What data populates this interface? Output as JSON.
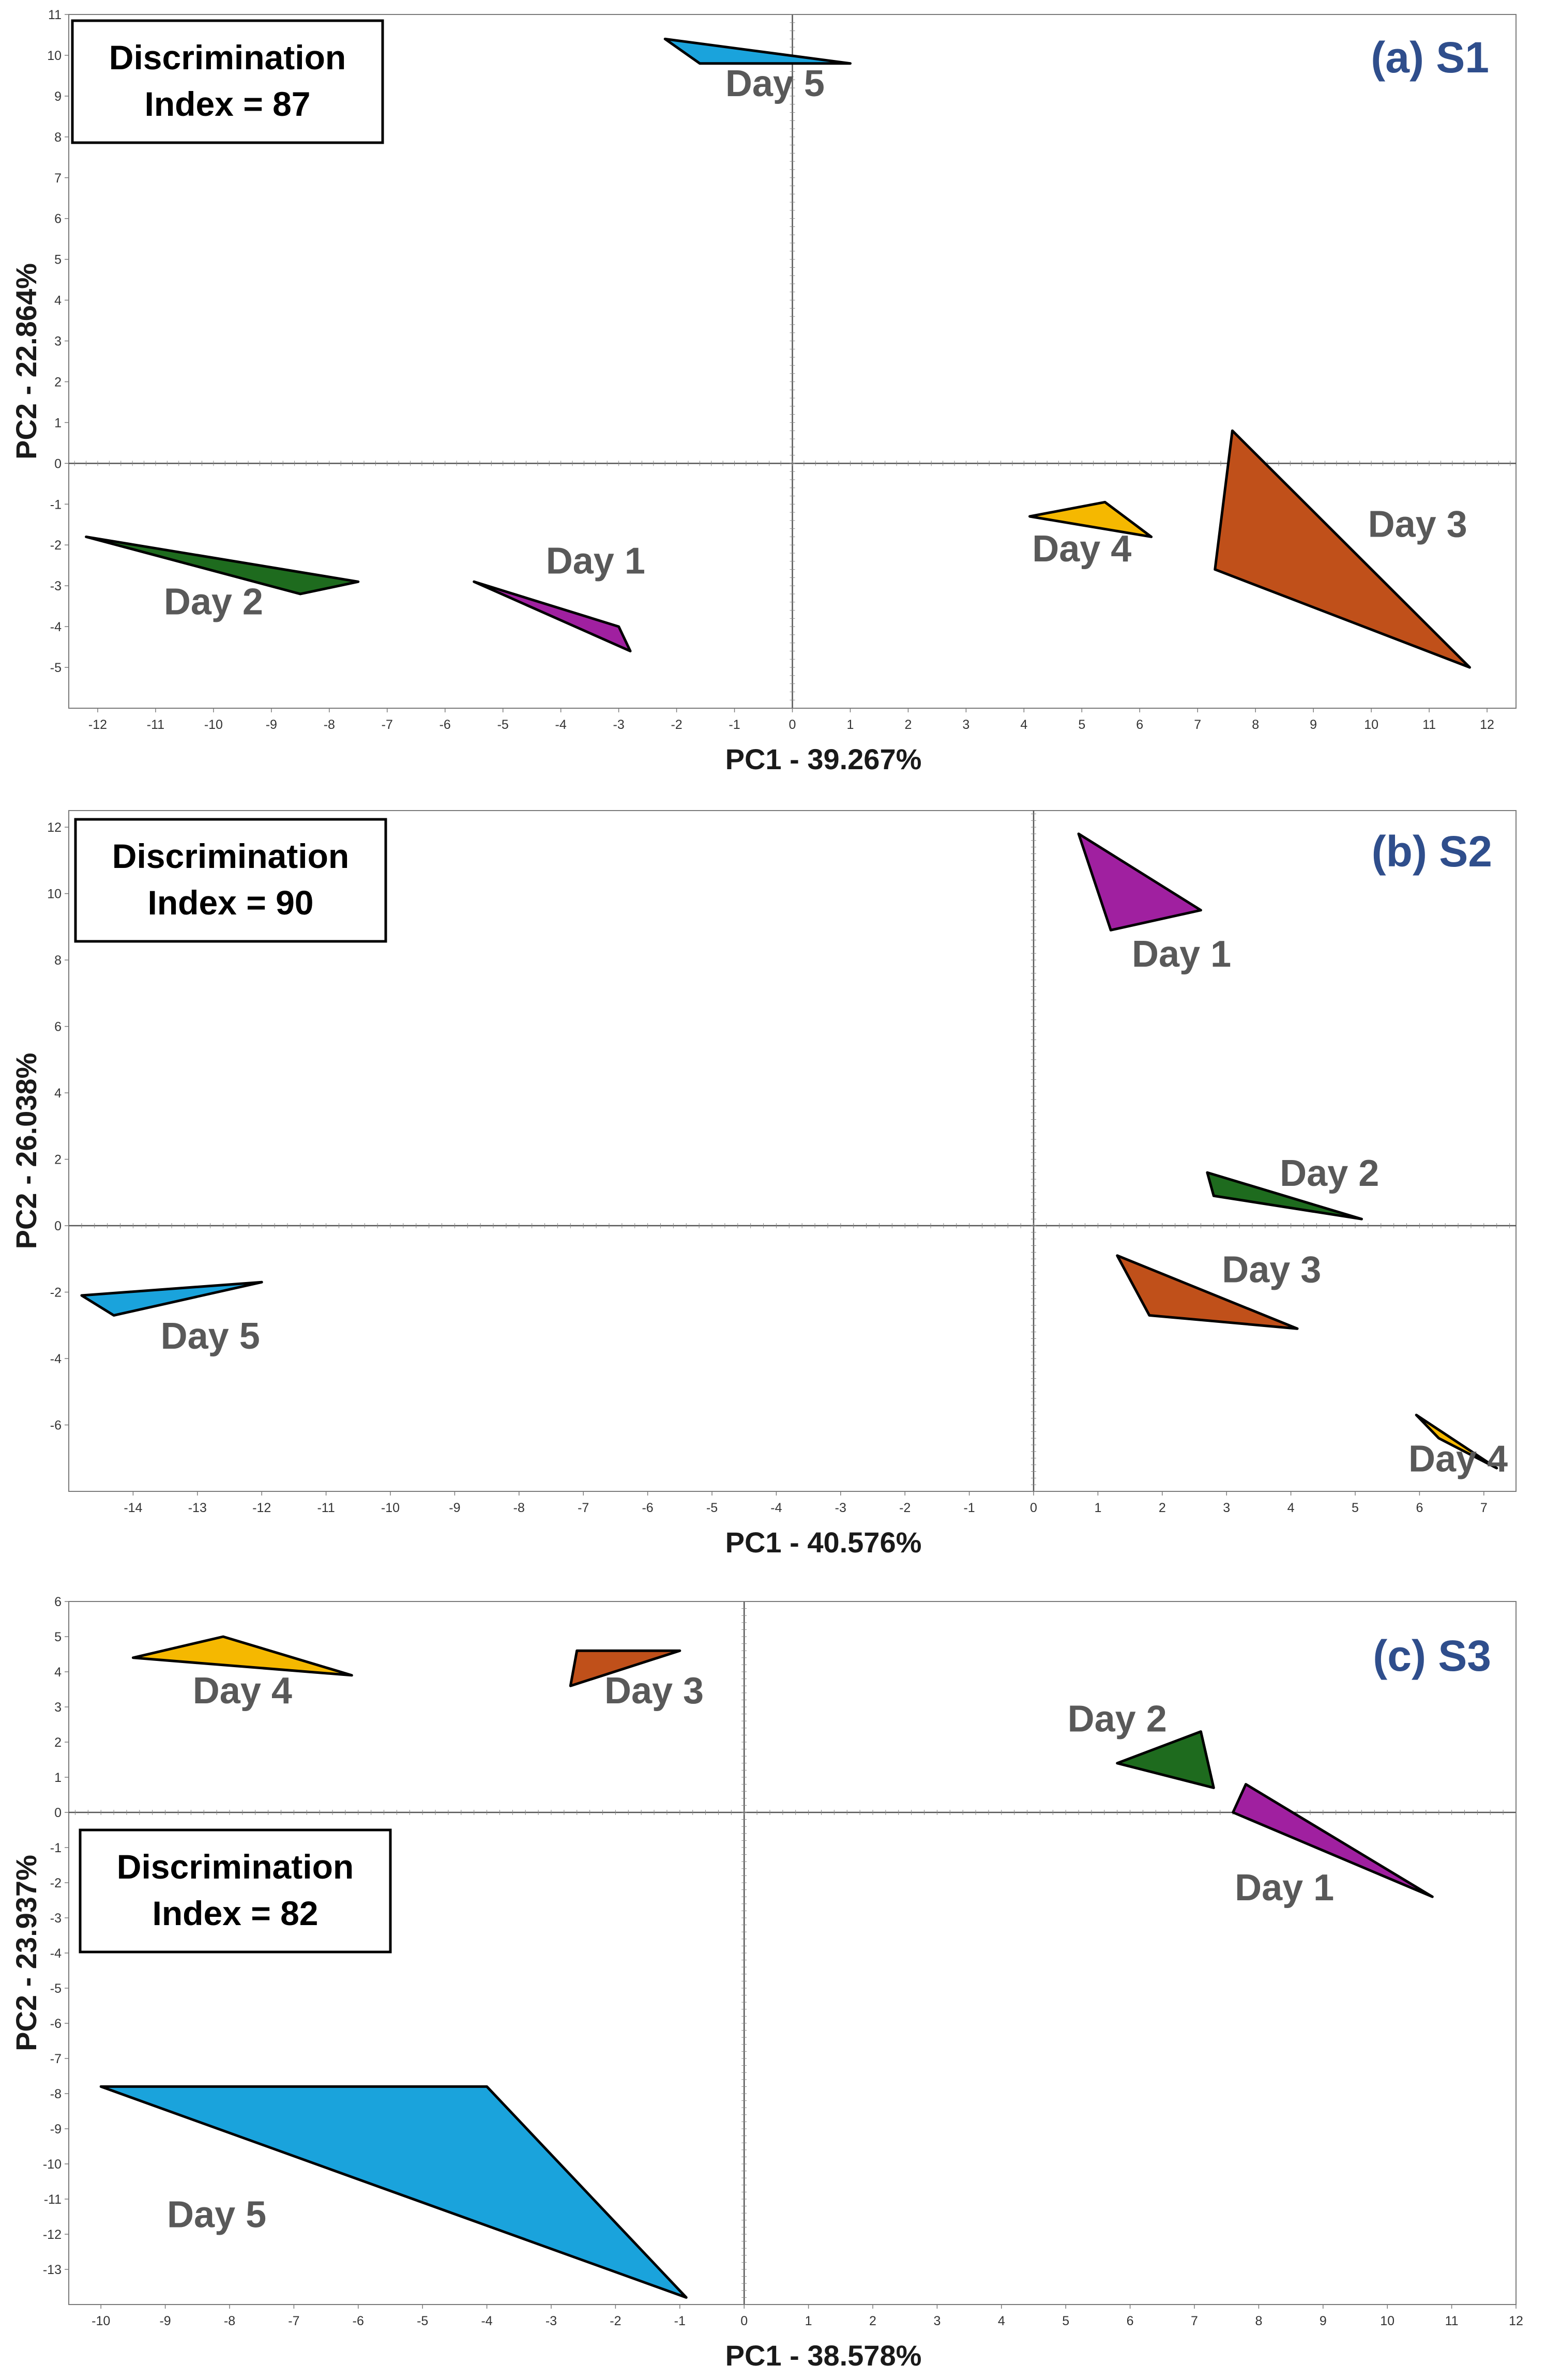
{
  "chart_data": [
    {
      "type": "scatter",
      "panel_id": "a",
      "title": "(a) S1",
      "xlabel": "PC1 - 39.267%",
      "ylabel": "PC2 - 22.864%",
      "xlim": [
        -12.5,
        12.5
      ],
      "ylim": [
        -6.0,
        11.0
      ],
      "xticks": [
        -12,
        -11,
        -10,
        -9,
        -8,
        -7,
        -6,
        -5,
        -4,
        -3,
        -2,
        -1,
        0,
        1,
        2,
        3,
        4,
        5,
        6,
        7,
        8,
        9,
        10,
        11,
        12
      ],
      "yticks": [
        -5,
        -4,
        -3,
        -2,
        -1,
        0,
        1,
        2,
        3,
        4,
        5,
        6,
        7,
        8,
        9,
        10,
        11
      ],
      "discrimination_index": {
        "line1": "Discrimination",
        "line2": "Index = 87"
      },
      "groups": [
        {
          "name": "Day 5",
          "color": "#1aa3dc",
          "label_at": [
            -0.3,
            9.0
          ],
          "vertices": [
            [
              -2.2,
              10.4
            ],
            [
              -1.6,
              9.8
            ],
            [
              1.0,
              9.8
            ]
          ]
        },
        {
          "name": "Day 2",
          "color": "#1e6b1e",
          "label_at": [
            -10.0,
            -3.7
          ],
          "vertices": [
            [
              -12.2,
              -1.8
            ],
            [
              -8.5,
              -3.2
            ],
            [
              -7.5,
              -2.9
            ]
          ]
        },
        {
          "name": "Day 1",
          "color": "#a020a0",
          "label_at": [
            -3.4,
            -2.7
          ],
          "vertices": [
            [
              -5.5,
              -2.9
            ],
            [
              -3.0,
              -4.0
            ],
            [
              -2.8,
              -4.6
            ]
          ]
        },
        {
          "name": "Day 4",
          "color": "#f5b800",
          "label_at": [
            5.0,
            -2.4
          ],
          "vertices": [
            [
              4.1,
              -1.3
            ],
            [
              5.4,
              -0.95
            ],
            [
              6.2,
              -1.8
            ]
          ]
        },
        {
          "name": "Day 3",
          "color": "#c0501a",
          "label_at": [
            10.8,
            -1.8
          ],
          "vertices": [
            [
              7.6,
              0.8
            ],
            [
              7.3,
              -2.6
            ],
            [
              11.7,
              -5.0
            ]
          ]
        }
      ]
    },
    {
      "type": "scatter",
      "panel_id": "b",
      "title": "(b) S2",
      "xlabel": "PC1 - 40.576%",
      "ylabel": "PC2 - 26.038%",
      "xlim": [
        -15.0,
        7.5
      ],
      "ylim": [
        -8.0,
        12.5
      ],
      "xticks": [
        -14,
        -13,
        -12,
        -11,
        -10,
        -9,
        -8,
        -7,
        -6,
        -5,
        -4,
        -3,
        -2,
        -1,
        0,
        1,
        2,
        3,
        4,
        5,
        6,
        7
      ],
      "yticks": [
        -6,
        -4,
        -2,
        0,
        2,
        4,
        6,
        8,
        10,
        12
      ],
      "discrimination_index": {
        "line1": "Discrimination",
        "line2": "Index = 90"
      },
      "groups": [
        {
          "name": "Day 1",
          "color": "#a020a0",
          "label_at": [
            2.3,
            7.8
          ],
          "vertices": [
            [
              0.7,
              11.8
            ],
            [
              1.2,
              8.9
            ],
            [
              2.6,
              9.5
            ]
          ]
        },
        {
          "name": "Day 2",
          "color": "#1e6b1e",
          "label_at": [
            4.6,
            1.2
          ],
          "vertices": [
            [
              2.7,
              1.6
            ],
            [
              2.8,
              0.9
            ],
            [
              5.1,
              0.2
            ]
          ]
        },
        {
          "name": "Day 3",
          "color": "#c0501a",
          "label_at": [
            3.7,
            -1.7
          ],
          "vertices": [
            [
              1.3,
              -0.9
            ],
            [
              1.8,
              -2.7
            ],
            [
              4.1,
              -3.1
            ]
          ]
        },
        {
          "name": "Day 5",
          "color": "#1aa3dc",
          "label_at": [
            -12.8,
            -3.7
          ],
          "vertices": [
            [
              -14.8,
              -2.1
            ],
            [
              -14.3,
              -2.7
            ],
            [
              -12.0,
              -1.7
            ]
          ]
        },
        {
          "name": "Day 4",
          "color": "#f5b800",
          "label_at": [
            6.6,
            -7.4
          ],
          "vertices": [
            [
              5.95,
              -5.7
            ],
            [
              6.3,
              -6.4
            ],
            [
              7.2,
              -7.3
            ]
          ]
        }
      ]
    },
    {
      "type": "scatter",
      "panel_id": "c",
      "title": "(c) S3",
      "xlabel": "PC1 - 38.578%",
      "ylabel": "PC2 - 23.937%",
      "xlim": [
        -10.5,
        12.0
      ],
      "ylim": [
        -14.0,
        6.0
      ],
      "xticks": [
        -10,
        -9,
        -8,
        -7,
        -6,
        -5,
        -4,
        -3,
        -2,
        -1,
        0,
        1,
        2,
        3,
        4,
        5,
        6,
        7,
        8,
        9,
        10,
        11,
        12
      ],
      "yticks": [
        -13,
        -12,
        -11,
        -10,
        -9,
        -8,
        -7,
        -6,
        -5,
        -4,
        -3,
        -2,
        -1,
        0,
        1,
        2,
        3,
        4,
        5,
        6
      ],
      "discrimination_index": {
        "line1": "Discrimination",
        "line2": "Index = 82"
      },
      "groups": [
        {
          "name": "Day 4",
          "color": "#f5b800",
          "label_at": [
            -7.8,
            3.1
          ],
          "vertices": [
            [
              -9.5,
              4.4
            ],
            [
              -8.1,
              5.0
            ],
            [
              -6.1,
              3.9
            ]
          ]
        },
        {
          "name": "Day 3",
          "color": "#c0501a",
          "label_at": [
            -1.4,
            3.1
          ],
          "vertices": [
            [
              -2.6,
              4.6
            ],
            [
              -1.0,
              4.6
            ],
            [
              -2.7,
              3.6
            ]
          ]
        },
        {
          "name": "Day 2",
          "color": "#1e6b1e",
          "label_at": [
            5.8,
            2.3
          ],
          "vertices": [
            [
              5.8,
              1.4
            ],
            [
              7.1,
              2.3
            ],
            [
              7.3,
              0.7
            ]
          ]
        },
        {
          "name": "Day 1",
          "color": "#a020a0",
          "label_at": [
            8.4,
            -2.5
          ],
          "vertices": [
            [
              7.8,
              0.8
            ],
            [
              7.6,
              0.0
            ],
            [
              10.7,
              -2.4
            ]
          ]
        },
        {
          "name": "Day 5",
          "color": "#1aa3dc",
          "label_at": [
            -8.2,
            -11.8
          ],
          "vertices": [
            [
              -10.0,
              -7.8
            ],
            [
              -4.0,
              -7.8
            ],
            [
              -0.9,
              -13.8
            ]
          ]
        }
      ]
    }
  ]
}
